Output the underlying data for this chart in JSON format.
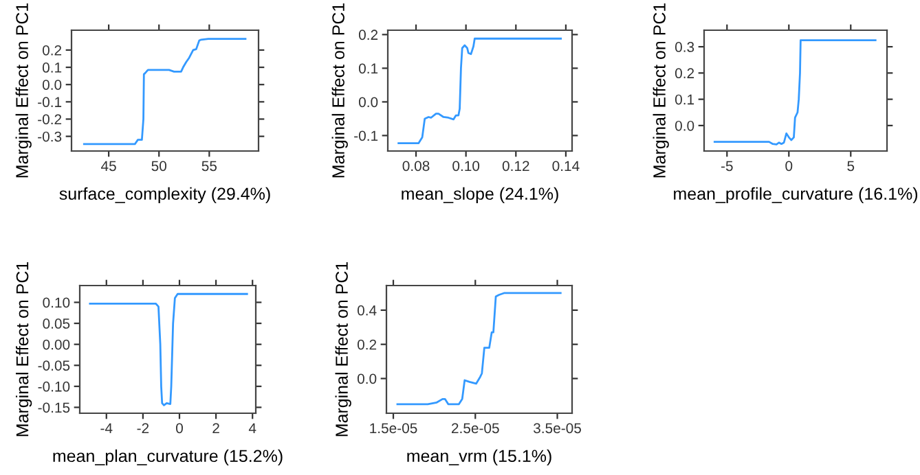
{
  "chart_data": [
    {
      "type": "line",
      "xlabel": "surface_complexity (29.4%)",
      "ylabel": "Marginal Effect on PC1",
      "xlim": [
        41.3,
        59.9
      ],
      "ylim": [
        -0.385,
        0.315
      ],
      "xticks": [
        45,
        50,
        55
      ],
      "yticks": [
        {
          "value": -0.3,
          "label": "-0.3"
        },
        {
          "value": -0.2,
          "label": "-0.2"
        },
        {
          "value": -0.1,
          "label": "-0.1"
        },
        {
          "value": 0.0,
          "label": "0.0"
        },
        0.1,
        0.2
      ],
      "grid": false,
      "marker": "none",
      "line_style": "solid",
      "series": [
        {
          "color": "#3399ff",
          "x": [
            42.55,
            47.6,
            47.9,
            48.3,
            48.45,
            48.5,
            48.6,
            48.9,
            49.1,
            51.0,
            51.5,
            52.2,
            52.4,
            52.7,
            53.0,
            53.4,
            53.7,
            54.0,
            54.2,
            54.9,
            58.6
          ],
          "values": [
            -0.345,
            -0.345,
            -0.32,
            -0.32,
            -0.2,
            0.06,
            0.065,
            0.085,
            0.085,
            0.085,
            0.075,
            0.075,
            0.1,
            0.13,
            0.155,
            0.2,
            0.205,
            0.255,
            0.26,
            0.265,
            0.265
          ]
        }
      ]
    },
    {
      "type": "line",
      "xlabel": "mean_slope (24.1%)",
      "ylabel": "Marginal Effect on PC1",
      "xlim": [
        0.0687,
        0.1425
      ],
      "ylim": [
        -0.146,
        0.213
      ],
      "xticks": [
        0.08,
        {
          "value": 0.1,
          "label": "0.10"
        },
        0.12,
        0.14
      ],
      "yticks": [
        {
          "value": -0.1,
          "label": "-0.1"
        },
        {
          "value": 0.0,
          "label": "0.0"
        },
        0.1,
        0.2
      ],
      "grid": false,
      "marker": "none",
      "line_style": "solid",
      "series": [
        {
          "color": "#3399ff",
          "x": [
            0.073,
            0.081,
            0.0825,
            0.0835,
            0.085,
            0.086,
            0.088,
            0.089,
            0.091,
            0.093,
            0.095,
            0.096,
            0.097,
            0.0975,
            0.098,
            0.0985,
            0.0995,
            0.1005,
            0.101,
            0.102,
            0.103,
            0.1035,
            0.138
          ],
          "values": [
            -0.123,
            -0.123,
            -0.105,
            -0.05,
            -0.045,
            -0.047,
            -0.035,
            -0.035,
            -0.045,
            -0.047,
            -0.052,
            -0.04,
            -0.04,
            -0.02,
            0.1,
            0.16,
            0.168,
            0.16,
            0.145,
            0.142,
            0.165,
            0.188,
            0.188
          ]
        }
      ]
    },
    {
      "type": "line",
      "xlabel": "mean_profile_curvature (16.1%)",
      "ylabel": "Marginal Effect on PC1",
      "xlim": [
        -6.85,
        7.93
      ],
      "ylim": [
        -0.097,
        0.363
      ],
      "xticks": [
        -5,
        0,
        5
      ],
      "yticks": [
        {
          "value": 0.0,
          "label": "0.0"
        },
        0.1,
        0.2,
        0.3
      ],
      "grid": false,
      "marker": "none",
      "line_style": "solid",
      "series": [
        {
          "color": "#3399ff",
          "x": [
            -6,
            -1.6,
            -1.3,
            -1,
            -0.8,
            -0.6,
            -0.4,
            -0.2,
            0,
            0.2,
            0.4,
            0.5,
            0.7,
            0.8,
            0.9,
            0.95,
            7
          ],
          "values": [
            -0.062,
            -0.062,
            -0.07,
            -0.072,
            -0.065,
            -0.07,
            -0.065,
            -0.03,
            -0.045,
            -0.055,
            -0.045,
            0.03,
            0.05,
            0.1,
            0.2,
            0.325,
            0.325
          ]
        }
      ]
    },
    {
      "type": "line",
      "xlabel": "mean_plan_curvature (15.2%)",
      "ylabel": "Marginal Effect on PC1",
      "xlim": [
        -5.46,
        4.18
      ],
      "ylim": [
        -0.164,
        0.14
      ],
      "xticks": [
        -4,
        -2,
        0,
        2,
        4
      ],
      "yticks": [
        {
          "value": -0.15,
          "label": "-0.15"
        },
        {
          "value": -0.1,
          "label": "-0.10"
        },
        {
          "value": -0.05,
          "label": "-0.05"
        },
        {
          "value": 0.0,
          "label": "0.00"
        },
        0.05,
        {
          "value": 0.1,
          "label": "0.10"
        }
      ],
      "grid": false,
      "marker": "none",
      "line_style": "solid",
      "series": [
        {
          "color": "#3399ff",
          "x": [
            -4.9,
            -1.3,
            -1.15,
            -1.05,
            -1,
            -0.95,
            -0.85,
            -0.7,
            -0.5,
            -0.45,
            -0.35,
            -0.25,
            -0.1,
            3.7
          ],
          "values": [
            0.097,
            0.097,
            0.09,
            0.0,
            -0.1,
            -0.14,
            -0.145,
            -0.14,
            -0.142,
            -0.1,
            0.05,
            0.11,
            0.12,
            0.12
          ]
        }
      ]
    },
    {
      "type": "line",
      "xlabel": "mean_vrm (15.1%)",
      "ylabel": "Marginal Effect on PC1",
      "xlim": [
        1.416e-05,
        3.68e-05
      ],
      "ylim": [
        -0.203,
        0.544
      ],
      "xticks": [
        {
          "value": 1.5e-05,
          "label": "1.5e-05"
        },
        {
          "value": 2.5e-05,
          "label": "2.5e-05"
        },
        {
          "value": 3.5e-05,
          "label": "3.5e-05"
        }
      ],
      "yticks": [
        {
          "value": 0.0,
          "label": "0.0"
        },
        0.2,
        0.4
      ],
      "grid": false,
      "marker": "none",
      "line_style": "solid",
      "series": [
        {
          "color": "#3399ff",
          "x": [
            1.55e-05,
            1.92e-05,
            2.03e-05,
            2.1e-05,
            2.13e-05,
            2.17e-05,
            2.3e-05,
            2.34e-05,
            2.37e-05,
            2.43e-05,
            2.51e-05,
            2.56e-05,
            2.58e-05,
            2.61e-05,
            2.67e-05,
            2.7e-05,
            2.72e-05,
            2.75e-05,
            2.79e-05,
            2.85e-05,
            3.54e-05
          ],
          "values": [
            -0.15,
            -0.15,
            -0.14,
            -0.12,
            -0.12,
            -0.15,
            -0.15,
            -0.12,
            -0.01,
            -0.02,
            -0.03,
            0.01,
            0.03,
            0.18,
            0.18,
            0.27,
            0.27,
            0.48,
            0.49,
            0.5,
            0.5
          ]
        }
      ]
    }
  ]
}
